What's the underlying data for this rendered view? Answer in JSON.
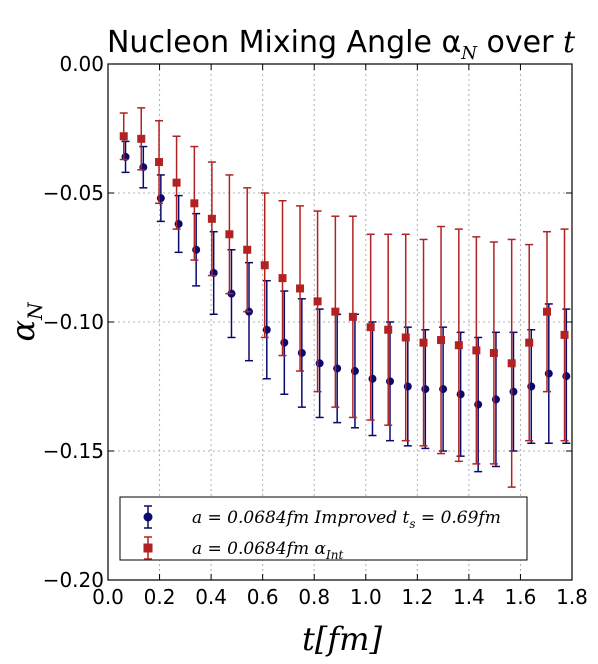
{
  "chart_data": {
    "type": "scatter",
    "title": "Nucleon Mixing Angle α",
    "title_sub": "N",
    "title_tail": " over ",
    "title_var": "t",
    "xlabel": "t[fm]",
    "ylabel": "α",
    "ylabel_sub": "N",
    "xlim": [
      0.0,
      1.8
    ],
    "ylim": [
      -0.2,
      0.0
    ],
    "xticks": [
      0.0,
      0.2,
      0.4,
      0.6,
      0.8,
      1.0,
      1.2,
      1.4,
      1.6,
      1.8
    ],
    "xtick_labels": [
      "0.0",
      "0.2",
      "0.4",
      "0.6",
      "0.8",
      "1.0",
      "1.2",
      "1.4",
      "1.6",
      "1.8"
    ],
    "yticks": [
      0.0,
      -0.05,
      -0.1,
      -0.15,
      -0.2
    ],
    "ytick_labels": [
      "0.00",
      "−0.05",
      "−0.10",
      "−0.15",
      "−0.20"
    ],
    "grid": true,
    "legend_position": "lower-left",
    "series": [
      {
        "name": "a = 0.0684fm Improved t",
        "name_sub": "s",
        "name_tail": " = 0.69fm",
        "marker": "circle",
        "color": "#0a0a6e",
        "x": [
          0.068,
          0.137,
          0.205,
          0.274,
          0.342,
          0.41,
          0.479,
          0.547,
          0.616,
          0.684,
          0.752,
          0.821,
          0.889,
          0.958,
          1.026,
          1.094,
          1.163,
          1.231,
          1.3,
          1.368,
          1.436,
          1.505,
          1.573,
          1.642,
          1.71,
          1.778
        ],
        "y": [
          -0.036,
          -0.04,
          -0.052,
          -0.062,
          -0.072,
          -0.081,
          -0.089,
          -0.096,
          -0.103,
          -0.108,
          -0.112,
          -0.116,
          -0.118,
          -0.119,
          -0.122,
          -0.123,
          -0.125,
          -0.126,
          -0.126,
          -0.128,
          -0.132,
          -0.13,
          -0.127,
          -0.125,
          -0.12,
          -0.121
        ],
        "err": [
          0.006,
          0.008,
          0.009,
          0.011,
          0.014,
          0.016,
          0.017,
          0.019,
          0.019,
          0.02,
          0.021,
          0.021,
          0.021,
          0.022,
          0.022,
          0.023,
          0.023,
          0.023,
          0.024,
          0.024,
          0.026,
          0.026,
          0.023,
          0.022,
          0.027,
          0.026
        ]
      },
      {
        "name": "a = 0.0684fm α",
        "name_sub": "Int",
        "name_tail": "",
        "marker": "square",
        "color": "#b22222",
        "x": [
          0.061,
          0.129,
          0.198,
          0.266,
          0.335,
          0.403,
          0.471,
          0.54,
          0.608,
          0.677,
          0.745,
          0.813,
          0.882,
          0.95,
          1.019,
          1.087,
          1.155,
          1.224,
          1.292,
          1.361,
          1.429,
          1.497,
          1.566,
          1.634,
          1.703,
          1.771
        ],
        "y": [
          -0.028,
          -0.029,
          -0.038,
          -0.046,
          -0.054,
          -0.06,
          -0.066,
          -0.072,
          -0.078,
          -0.083,
          -0.087,
          -0.092,
          -0.096,
          -0.098,
          -0.102,
          -0.103,
          -0.106,
          -0.108,
          -0.107,
          -0.109,
          -0.111,
          -0.112,
          -0.116,
          -0.108,
          -0.096,
          -0.105
        ],
        "err": [
          0.009,
          0.012,
          0.016,
          0.018,
          0.022,
          0.022,
          0.023,
          0.024,
          0.028,
          0.03,
          0.032,
          0.035,
          0.037,
          0.039,
          0.036,
          0.037,
          0.04,
          0.04,
          0.044,
          0.045,
          0.044,
          0.043,
          0.048,
          0.038,
          0.031,
          0.041
        ]
      }
    ]
  }
}
